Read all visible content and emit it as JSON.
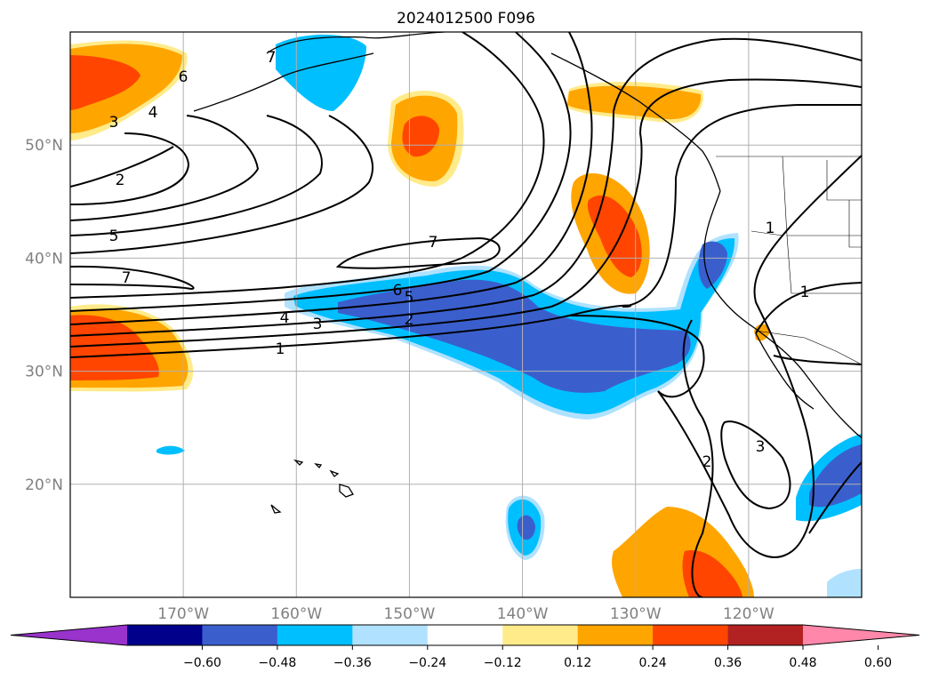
{
  "title": "2024012500 F096",
  "map": {
    "lon_range": [
      -180,
      -110
    ],
    "lat_range": [
      10,
      60
    ],
    "lat_ticks": [
      {
        "value": 20,
        "label": "20°N"
      },
      {
        "value": 30,
        "label": "30°N"
      },
      {
        "value": 40,
        "label": "40°N"
      },
      {
        "value": 50,
        "label": "50°N"
      }
    ],
    "lon_ticks": [
      {
        "value": -170,
        "label": "170°W"
      },
      {
        "value": -160,
        "label": "160°W"
      },
      {
        "value": -150,
        "label": "150°W"
      },
      {
        "value": -140,
        "label": "140°W"
      },
      {
        "value": -130,
        "label": "130°W"
      },
      {
        "value": -120,
        "label": "120°W"
      }
    ],
    "grid": true
  },
  "colorbar": {
    "orientation": "horizontal",
    "extend": "both",
    "ticks": [
      "−0.60",
      "−0.48",
      "−0.36",
      "−0.24",
      "−0.12",
      "0.12",
      "0.24",
      "0.36",
      "0.48",
      "0.60"
    ],
    "colors": [
      "#9933cc",
      "#00008b",
      "#3a5fcd",
      "#00bfff",
      "#b0e2ff",
      "#ffffff",
      "#ffeb8a",
      "#ffa500",
      "#ff4500",
      "#b22222",
      "#ff88aa"
    ]
  },
  "contour_labels": [
    "6",
    "3",
    "4",
    "2",
    "5",
    "7",
    "7",
    "7",
    "6",
    "5",
    "4",
    "3",
    "2",
    "1",
    "2",
    "3",
    "1",
    "1"
  ]
}
